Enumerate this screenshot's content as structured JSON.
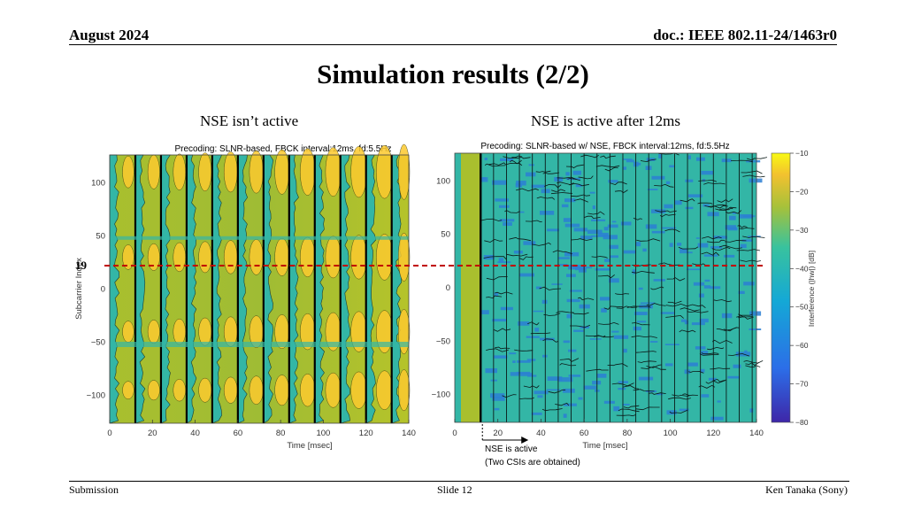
{
  "header": {
    "date": "August 2024",
    "doc": "doc.: IEEE 802.11-24/1463r0"
  },
  "title": "Simulation results (2/2)",
  "left_subtitle": "NSE isn’t active",
  "right_subtitle": "NSE is active after 12ms",
  "subcarrier_marker": "19",
  "annotation": {
    "line1": "NSE is active",
    "line2": "(Two CSIs are obtained)"
  },
  "footer": {
    "left": "Submission",
    "center": "Slide 12",
    "right": "Ken Tanaka (Sony)"
  },
  "chart_data": [
    {
      "type": "heatmap",
      "title": "Precoding: SLNR-based,  FBCK interval:12ms, fd:5.5Hz",
      "xlabel": "Time [msec]",
      "ylabel": "Subcarrier Index",
      "xlim": [
        0,
        140
      ],
      "ylim": [
        -126,
        126
      ],
      "x_ticks": [
        0,
        20,
        40,
        60,
        80,
        100,
        120,
        140
      ],
      "y_ticks": [
        100,
        50,
        0,
        -50,
        -100
      ],
      "feedback_times_ms": [
        12,
        24,
        36,
        48,
        60,
        72,
        84,
        96,
        108,
        120,
        132
      ]
    },
    {
      "type": "heatmap",
      "title": "Precoding: SLNR-based w/ NSE,  FBCK interval:12ms, fd:5.5Hz",
      "xlabel": "Time [msec]",
      "ylabel": "",
      "xlim": [
        0,
        140
      ],
      "ylim": [
        -126,
        126
      ],
      "x_ticks": [
        0,
        20,
        40,
        60,
        80,
        100,
        120,
        140
      ],
      "y_ticks": [
        100,
        50,
        0,
        -50,
        -100
      ],
      "nse_start_ms": 12,
      "colorbar": {
        "label": "Interference (|hw|) [dB]",
        "ticks": [
          -10,
          -20,
          -30,
          -40,
          -50,
          -60,
          -70,
          -80
        ],
        "range": [
          -80,
          -10
        ]
      }
    }
  ],
  "colors": {
    "yellow": "#fcca2f",
    "olive": "#a7bd2c",
    "teal": "#33b6a6",
    "blue": "#2b7fd3",
    "marker": "#c00000"
  }
}
